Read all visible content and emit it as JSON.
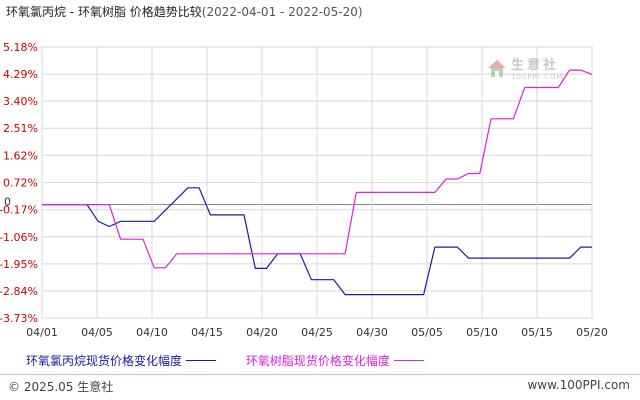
{
  "title": {
    "main": "环氧氯丙烷 - 环氧树脂 价格趋势比较",
    "range": "(2022-04-01 - 2022-05-20)"
  },
  "watermark": {
    "cn": "生意社",
    "en": "100PPI.COM"
  },
  "footer": {
    "left": "© 2025.05 生意社",
    "right": "www.100PPI.com"
  },
  "colors": {
    "epichlorohydrin": "#1a1aa6",
    "epoxy": "#dd22dd",
    "axis_label": "#cc0000",
    "grid": "#d8d8d8",
    "zero_line": "#8a8a8a"
  },
  "chart_data": {
    "type": "line",
    "y_ticks": [
      5.18,
      4.29,
      3.4,
      2.51,
      1.62,
      0.72,
      -0.17,
      -1.06,
      -1.95,
      -2.84,
      -3.73
    ],
    "y_tick_labels": [
      "5.18%",
      "4.29%",
      "3.40%",
      "2.51%",
      "1.62%",
      "0.72%",
      "-0.17%",
      "-1.06%",
      "-1.95%",
      "-2.84%",
      "-3.73%"
    ],
    "zero_label": "0",
    "ylim": [
      -3.73,
      5.18
    ],
    "x_ticks": [
      "04/01",
      "04/05",
      "04/10",
      "04/15",
      "04/20",
      "04/25",
      "04/30",
      "05/05",
      "05/10",
      "05/15",
      "05/20"
    ],
    "x_start": "2022-04-01",
    "x_end": "2022-05-20",
    "grid": true,
    "series": [
      {
        "name": "环氧氯丙烷现货价格变化幅度",
        "key": "epichlorohydrin",
        "points": [
          [
            "2022-04-01",
            0
          ],
          [
            "2022-04-05",
            0
          ],
          [
            "2022-04-06",
            -0.55
          ],
          [
            "2022-04-07",
            -0.72
          ],
          [
            "2022-04-08",
            -0.55
          ],
          [
            "2022-04-11",
            -0.55
          ],
          [
            "2022-04-14",
            0.55
          ],
          [
            "2022-04-15",
            0.55
          ],
          [
            "2022-04-16",
            -0.34
          ],
          [
            "2022-04-19",
            -0.34
          ],
          [
            "2022-04-20",
            -2.1
          ],
          [
            "2022-04-21",
            -2.1
          ],
          [
            "2022-04-22",
            -1.62
          ],
          [
            "2022-04-24",
            -1.62
          ],
          [
            "2022-04-25",
            -2.47
          ],
          [
            "2022-04-27",
            -2.47
          ],
          [
            "2022-04-28",
            -2.96
          ],
          [
            "2022-05-05",
            -2.96
          ],
          [
            "2022-05-06",
            -1.4
          ],
          [
            "2022-05-08",
            -1.4
          ],
          [
            "2022-05-09",
            -1.76
          ],
          [
            "2022-05-18",
            -1.76
          ],
          [
            "2022-05-19",
            -1.4
          ],
          [
            "2022-05-20",
            -1.4
          ]
        ]
      },
      {
        "name": "环氧树脂现货价格变化幅度",
        "key": "epoxy",
        "points": [
          [
            "2022-04-01",
            0
          ],
          [
            "2022-04-07",
            0
          ],
          [
            "2022-04-08",
            -1.14
          ],
          [
            "2022-04-10",
            -1.14
          ],
          [
            "2022-04-11",
            -2.08
          ],
          [
            "2022-04-12",
            -2.08
          ],
          [
            "2022-04-13",
            -1.62
          ],
          [
            "2022-04-28",
            -1.62
          ],
          [
            "2022-04-29",
            0.4
          ],
          [
            "2022-05-06",
            0.4
          ],
          [
            "2022-05-07",
            0.84
          ],
          [
            "2022-05-08",
            0.84
          ],
          [
            "2022-05-09",
            1.02
          ],
          [
            "2022-05-10",
            1.02
          ],
          [
            "2022-05-11",
            2.82
          ],
          [
            "2022-05-13",
            2.82
          ],
          [
            "2022-05-14",
            3.85
          ],
          [
            "2022-05-17",
            3.85
          ],
          [
            "2022-05-18",
            4.42
          ],
          [
            "2022-05-19",
            4.42
          ],
          [
            "2022-05-20",
            4.28
          ]
        ]
      }
    ]
  }
}
